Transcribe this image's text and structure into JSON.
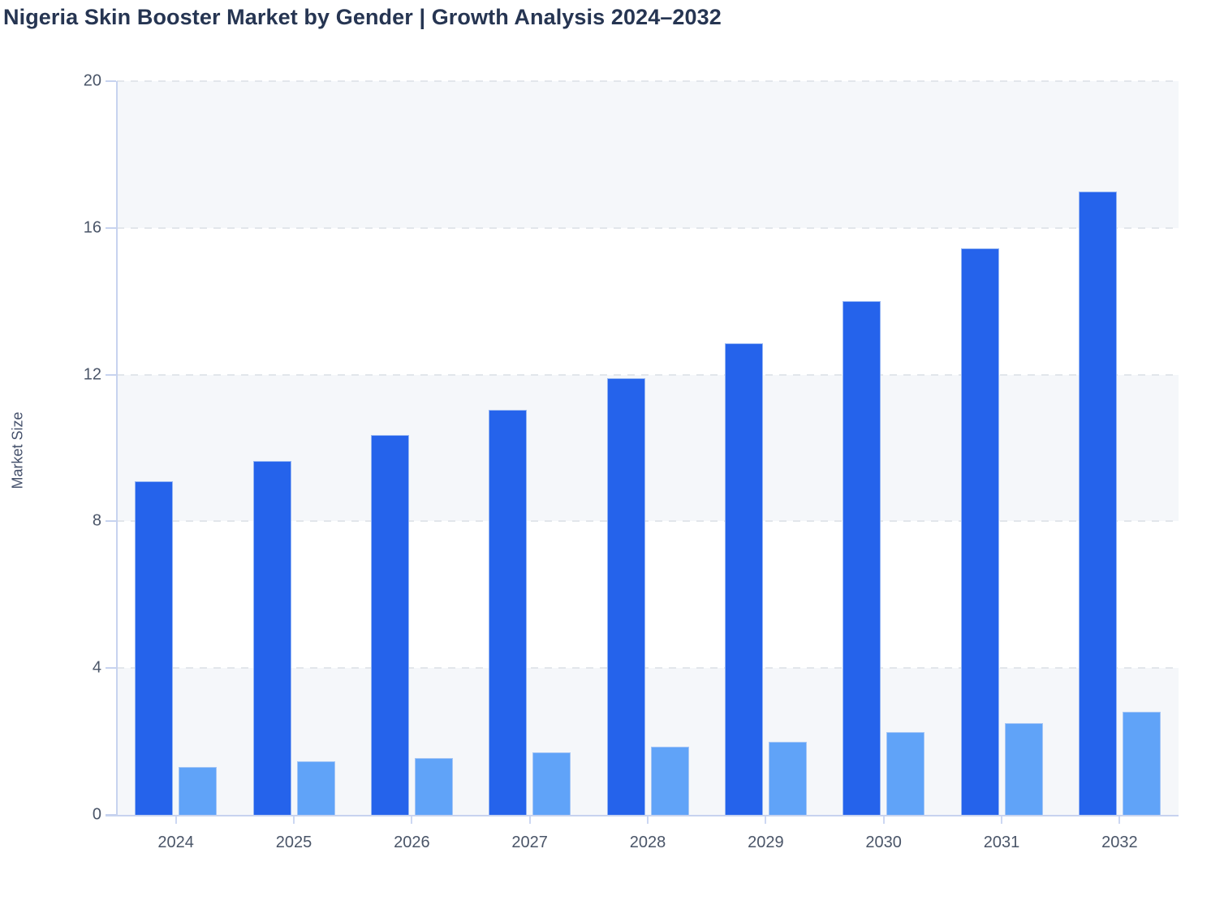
{
  "title": "Nigeria Skin Booster Market by Gender | Growth Analysis 2024–2032",
  "chart_data": {
    "type": "bar",
    "title": "Nigeria Skin Booster Market by Gender | Growth Analysis 2024–2032",
    "categories": [
      "2024",
      "2025",
      "2026",
      "2027",
      "2028",
      "2029",
      "2030",
      "2031",
      "2032"
    ],
    "series": [
      {
        "name": "dark-blue",
        "color": "#2563eb",
        "values": [
          9.1,
          9.65,
          10.35,
          11.05,
          11.9,
          12.85,
          14.0,
          15.45,
          17.0
        ]
      },
      {
        "name": "light-blue",
        "color": "#60a3f8",
        "values": [
          1.3,
          1.45,
          1.55,
          1.7,
          1.85,
          2.0,
          2.25,
          2.5,
          2.8
        ]
      }
    ],
    "xlabel": "",
    "ylabel": "Market Size",
    "ylim": [
      0,
      20
    ],
    "yticks": [
      0,
      4,
      8,
      12,
      16,
      20
    ],
    "grid": "horizontal-dashed",
    "band_fill": "alternating-horizontal",
    "legend": "none"
  },
  "colors": {
    "series_dark": "#2563eb",
    "series_light": "#60a3f8",
    "band_gray": "#f5f7fa",
    "gridline": "#e2e6eb",
    "axis_line": "#c7d3ef",
    "tick_label": "#4a5568",
    "title_text": "#263552"
  }
}
